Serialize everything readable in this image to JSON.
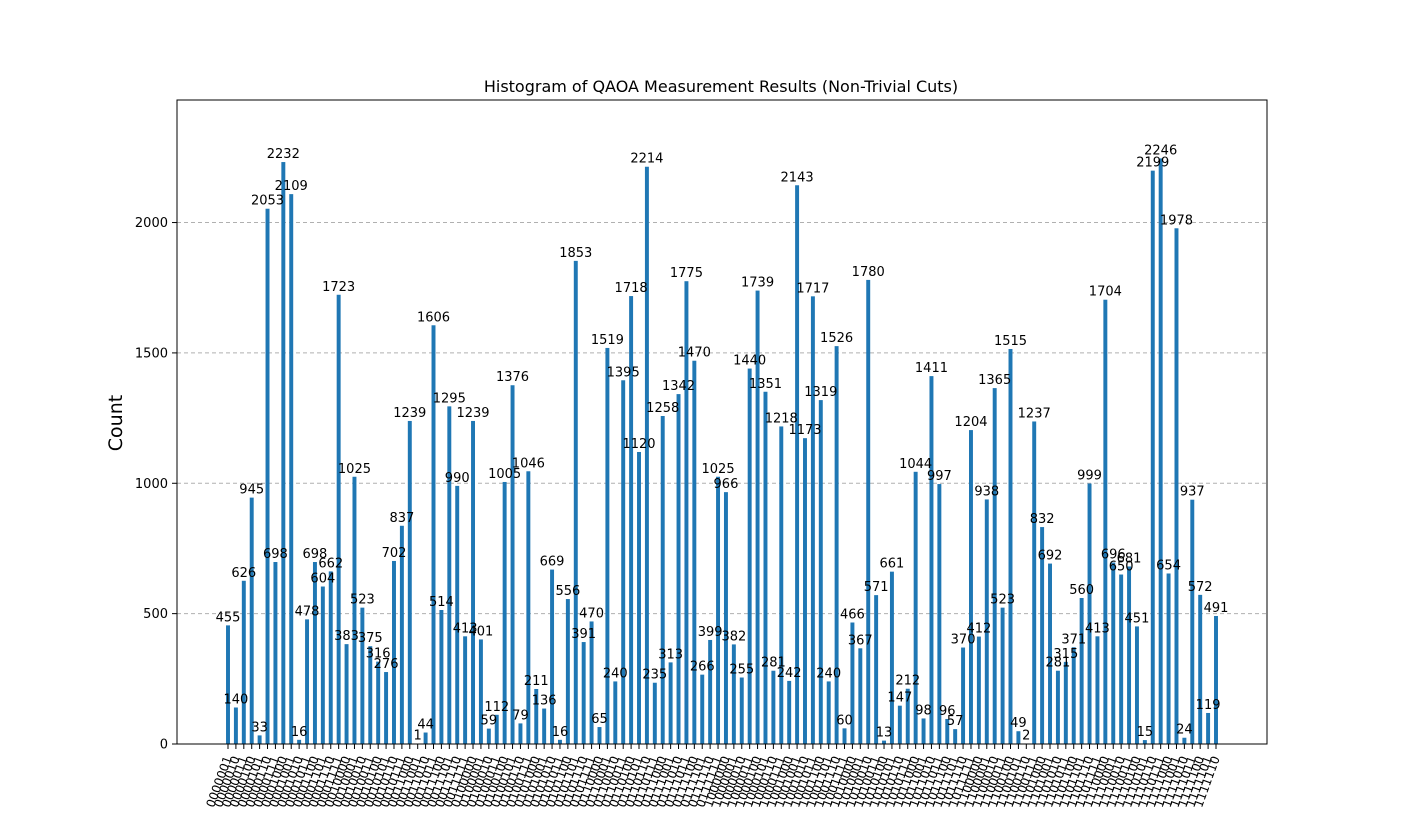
{
  "chart_data": {
    "type": "bar",
    "title": "Histogram of QAOA Measurement Results (Non-Trivial Cuts)",
    "xlabel": "",
    "ylabel": "Count",
    "ylim": [
      0,
      2470
    ],
    "yticks": [
      0,
      500,
      1000,
      1500,
      2000
    ],
    "grid": "y-dashed",
    "bar_color": "#1f77b4",
    "categories": [
      "0000001",
      "0000010",
      "0000011",
      "0000100",
      "0000101",
      "0000110",
      "0000111",
      "0001000",
      "0001001",
      "0001010",
      "0001011",
      "0001100",
      "0001101",
      "0001110",
      "0001111",
      "0010000",
      "0010001",
      "0010010",
      "0010011",
      "0010100",
      "0010101",
      "0010110",
      "0010111",
      "0011000",
      "0011001",
      "0011010",
      "0011011",
      "0011100",
      "0011101",
      "0011110",
      "0011111",
      "0100000",
      "0100001",
      "0100010",
      "0100011",
      "0100100",
      "0100101",
      "0100110",
      "0100111",
      "0101000",
      "0101001",
      "0101010",
      "0101011",
      "0101100",
      "0101101",
      "0101110",
      "0101111",
      "0110000",
      "0110001",
      "0110010",
      "0110011",
      "0110100",
      "0110101",
      "0110110",
      "0110111",
      "0111000",
      "0111001",
      "0111010",
      "0111011",
      "0111100",
      "0111101",
      "0111110",
      "0111111",
      "1000000",
      "1000001",
      "1000010",
      "1000011",
      "1000100",
      "1000101",
      "1000110",
      "1000111",
      "1001000",
      "1001001",
      "1001010",
      "1001011",
      "1001100",
      "1001101",
      "1001110",
      "1001111",
      "1010000",
      "1010001",
      "1010010",
      "1010011",
      "1010100",
      "1010101",
      "1010110",
      "1010111",
      "1011000",
      "1011001",
      "1011010",
      "1011011",
      "1011100",
      "1011101",
      "1011110",
      "1011111",
      "1100000",
      "1100001",
      "1100010",
      "1100011",
      "1100100",
      "1100101",
      "1100110",
      "1100111",
      "1101000",
      "1101001",
      "1101010",
      "1101011",
      "1101100",
      "1101101",
      "1101110",
      "1101111",
      "1110000",
      "1110001",
      "1110010",
      "1110011",
      "1110100",
      "1110101",
      "1110110",
      "1110111",
      "1111000",
      "1111001",
      "1111010",
      "1111011",
      "1111100",
      "1111101",
      "1111110"
    ],
    "values": [
      455,
      140,
      626,
      945,
      33,
      2053,
      698,
      2232,
      2109,
      16,
      478,
      698,
      604,
      662,
      1723,
      383,
      1025,
      523,
      375,
      316,
      276,
      702,
      837,
      1239,
      1,
      44,
      1606,
      514,
      1295,
      990,
      413,
      1239,
      401,
      59,
      112,
      1005,
      1376,
      79,
      1046,
      211,
      136,
      669,
      16,
      556,
      1853,
      391,
      470,
      65,
      1519,
      240,
      1395,
      1718,
      1120,
      2214,
      235,
      1258,
      313,
      1342,
      1775,
      1470,
      266,
      399,
      1025,
      966,
      382,
      255,
      1440,
      1739,
      1351,
      281,
      1218,
      242,
      2143,
      1173,
      1717,
      1319,
      240,
      1526,
      60,
      466,
      367,
      1780,
      571,
      13,
      661,
      147,
      212,
      1044,
      98,
      1411,
      997,
      96,
      57,
      370,
      1204,
      412,
      938,
      1365,
      523,
      1515,
      49,
      2,
      1237,
      832,
      692,
      281,
      315,
      371,
      560,
      999,
      413,
      1704,
      696,
      650,
      681,
      451,
      15,
      2199,
      2246,
      654,
      1978,
      24,
      937,
      572,
      119,
      491
    ]
  }
}
